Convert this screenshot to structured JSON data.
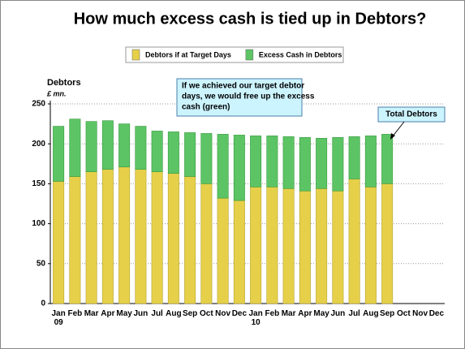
{
  "chart_data": {
    "type": "stacked_bar",
    "title": "How much excess cash is tied up in Debtors?",
    "y_axis_label": "Debtors",
    "y_axis_unit": "£ mn.",
    "categories": [
      "Jan 09",
      "Feb",
      "Mar",
      "Apr",
      "May",
      "Jun",
      "Jul",
      "Aug",
      "Sep",
      "Oct",
      "Nov",
      "Dec",
      "Jan 10",
      "Feb",
      "Mar",
      "Apr",
      "May",
      "Jun",
      "Jul",
      "Aug",
      "Sep",
      "Oct",
      "Nov",
      "Dec"
    ],
    "series": [
      {
        "name": "Debtors if at Target Days",
        "color": "#e6d04a",
        "values": [
          153,
          159,
          165,
          168,
          171,
          168,
          165,
          163,
          159,
          150,
          132,
          129,
          146,
          146,
          144,
          141,
          144,
          141,
          156,
          146,
          150,
          null,
          null,
          null
        ]
      },
      {
        "name": "Excess Cash in Debtors",
        "color": "#5cc465",
        "values": [
          69,
          72,
          63,
          61,
          54,
          54,
          51,
          52,
          55,
          63,
          80,
          82,
          64,
          64,
          65,
          67,
          63,
          67,
          53,
          64,
          62,
          null,
          null,
          null
        ]
      }
    ],
    "ylim": [
      0,
      250
    ],
    "yticks": [
      0,
      50,
      100,
      150,
      200,
      250
    ],
    "grid": true,
    "legend": "top",
    "annotations": [
      {
        "text": [
          "If we achieved our target debtor",
          "days, we would free up the excess",
          "cash (green)"
        ]
      },
      {
        "text": [
          "Total Debtors"
        ]
      }
    ]
  }
}
